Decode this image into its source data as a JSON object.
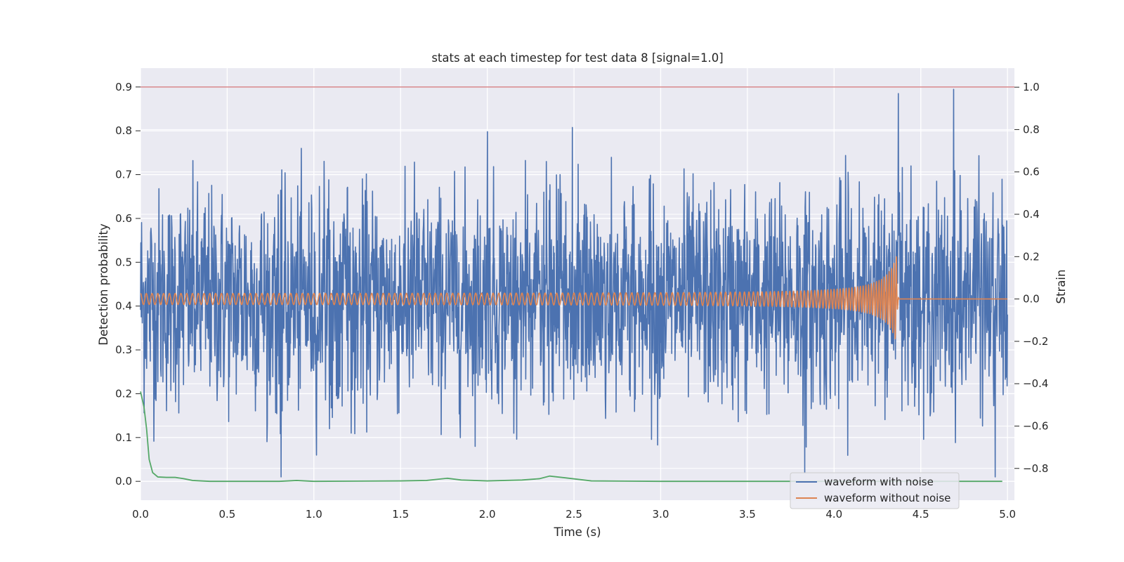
{
  "chart_data": {
    "type": "line",
    "title": "stats at each timestep for test data 8 [signal=1.0]",
    "xlabel": "Time (s)",
    "ylabel": "Detection probability",
    "y2label": "Strain",
    "xlim": [
      0.0,
      5.04
    ],
    "ylim": [
      -0.043,
      0.943
    ],
    "y2lim": [
      -0.95,
      1.09
    ],
    "x_ticks": [
      0.0,
      0.5,
      1.0,
      1.5,
      2.0,
      2.5,
      3.0,
      3.5,
      4.0,
      4.5,
      5.0
    ],
    "x_tick_labels": [
      "0.0",
      "0.5",
      "1.0",
      "1.5",
      "2.0",
      "2.5",
      "3.0",
      "3.5",
      "4.0",
      "4.5",
      "5.0"
    ],
    "y_ticks": [
      0.0,
      0.1,
      0.2,
      0.3,
      0.4,
      0.5,
      0.6,
      0.7,
      0.8,
      0.9
    ],
    "y_tick_labels": [
      "0.0",
      "0.1",
      "0.2",
      "0.3",
      "0.4",
      "0.5",
      "0.6",
      "0.7",
      "0.8",
      "0.9"
    ],
    "y2_ticks": [
      -0.8,
      -0.6,
      -0.4,
      -0.2,
      0.0,
      0.2,
      0.4,
      0.6,
      0.8,
      1.0
    ],
    "y2_tick_labels": [
      "−0.8",
      "−0.6",
      "−0.4",
      "−0.2",
      "0.0",
      "0.2",
      "0.4",
      "0.6",
      "0.8",
      "1.0"
    ],
    "grid": true,
    "legend": "lower-right",
    "colors": {
      "background": "#eaeaf2",
      "grid": "#ffffff",
      "noisy": "#4c72b0",
      "clean": "#dd8452",
      "probability": "#55a868",
      "threshold": "#c44e52"
    },
    "series": [
      {
        "name": "waveform with noise",
        "axis": "right",
        "description_values": {
          "t_start": 0.0,
          "t_end": 5.0,
          "typical_amplitude": 0.28,
          "peaks": [
            [
              4.37,
              0.97
            ],
            [
              4.69,
              0.99
            ],
            [
              2.49,
              0.81
            ],
            [
              2.0,
              0.79
            ],
            [
              0.81,
              -0.84
            ],
            [
              4.93,
              -0.84
            ],
            [
              3.83,
              -0.82
            ]
          ]
        }
      },
      {
        "name": "waveform without noise",
        "axis": "right",
        "description_values": {
          "t_start": 0.0,
          "t_merger": 4.36,
          "t_end": 5.0,
          "amplitude_start": 0.025,
          "amplitude_peak": 0.21,
          "freq_start_hz": 30,
          "freq_merger_hz": 160
        }
      },
      {
        "name": "",
        "axis": "left",
        "x": [
          0.0,
          0.02,
          0.035,
          0.05,
          0.07,
          0.1,
          0.15,
          0.2,
          0.25,
          0.3,
          0.4,
          0.6,
          0.8,
          0.9,
          1.0,
          1.5,
          1.65,
          1.77,
          1.85,
          2.0,
          2.2,
          2.3,
          2.36,
          2.45,
          2.6,
          3.0,
          3.5,
          4.0,
          4.5,
          4.97
        ],
        "y": [
          0.205,
          0.17,
          0.12,
          0.05,
          0.02,
          0.01,
          0.009,
          0.009,
          0.006,
          0.002,
          0.0,
          0.0,
          0.0,
          0.002,
          0.0,
          0.001,
          0.002,
          0.007,
          0.003,
          0.001,
          0.003,
          0.006,
          0.012,
          0.008,
          0.001,
          0.0,
          0.0,
          0.0,
          0.0,
          0.0
        ]
      },
      {
        "name": "",
        "axis": "left",
        "type": "hline",
        "y": 0.9
      }
    ]
  }
}
